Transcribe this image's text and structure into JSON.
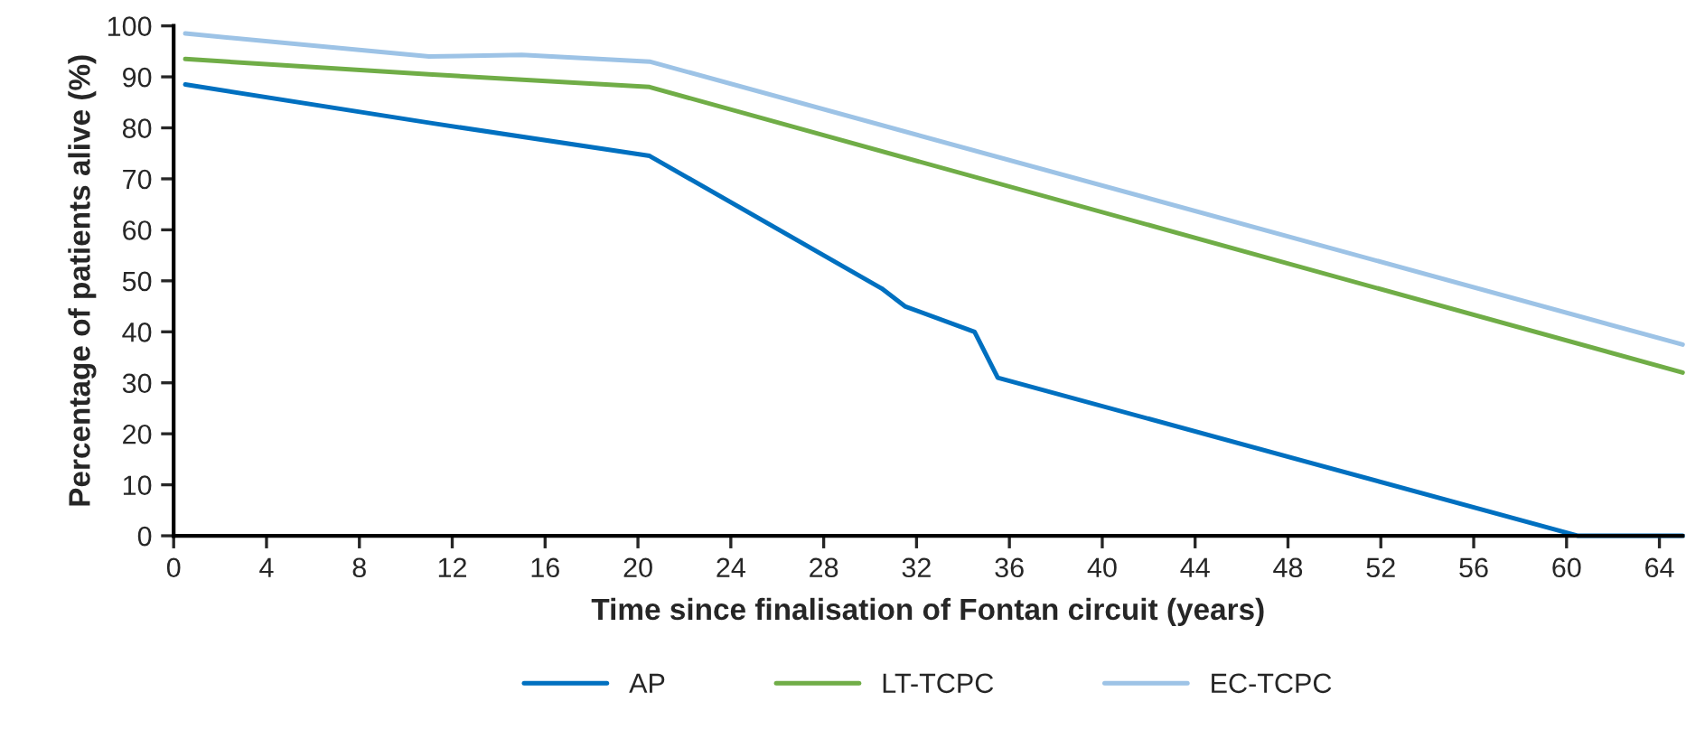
{
  "chart_data": {
    "type": "line",
    "xlabel": "Time since finalisation of Fontan circuit (years)",
    "ylabel": "Percentage of patients alive (%)",
    "xlim": [
      0,
      65
    ],
    "xticks": [
      0,
      4,
      8,
      12,
      16,
      20,
      24,
      28,
      32,
      36,
      40,
      44,
      48,
      52,
      56,
      60,
      64
    ],
    "ylim": [
      0,
      100
    ],
    "yticks": [
      0,
      10,
      20,
      30,
      40,
      50,
      60,
      70,
      80,
      90,
      100
    ],
    "grid": false,
    "legend": "bottom",
    "marker": "none",
    "line_style": "solid",
    "series": [
      {
        "name": "AP",
        "color": "#0070c0",
        "x": [
          0.5,
          11,
          20.5,
          30.5,
          31.5,
          34.5,
          35.5,
          60.5,
          65
        ],
        "values": [
          88.5,
          81,
          74.5,
          48.5,
          45,
          40,
          31,
          0,
          0
        ]
      },
      {
        "name": "LT-TCPC",
        "color": "#70ad47",
        "x": [
          0.5,
          11,
          20.5,
          65
        ],
        "values": [
          93.5,
          90.5,
          88,
          32
        ]
      },
      {
        "name": "EC-TCPC",
        "color": "#9dc3e6",
        "x": [
          0.5,
          11,
          15,
          20.5,
          65
        ],
        "values": [
          98.5,
          94,
          94.3,
          93,
          37.5
        ]
      }
    ]
  }
}
